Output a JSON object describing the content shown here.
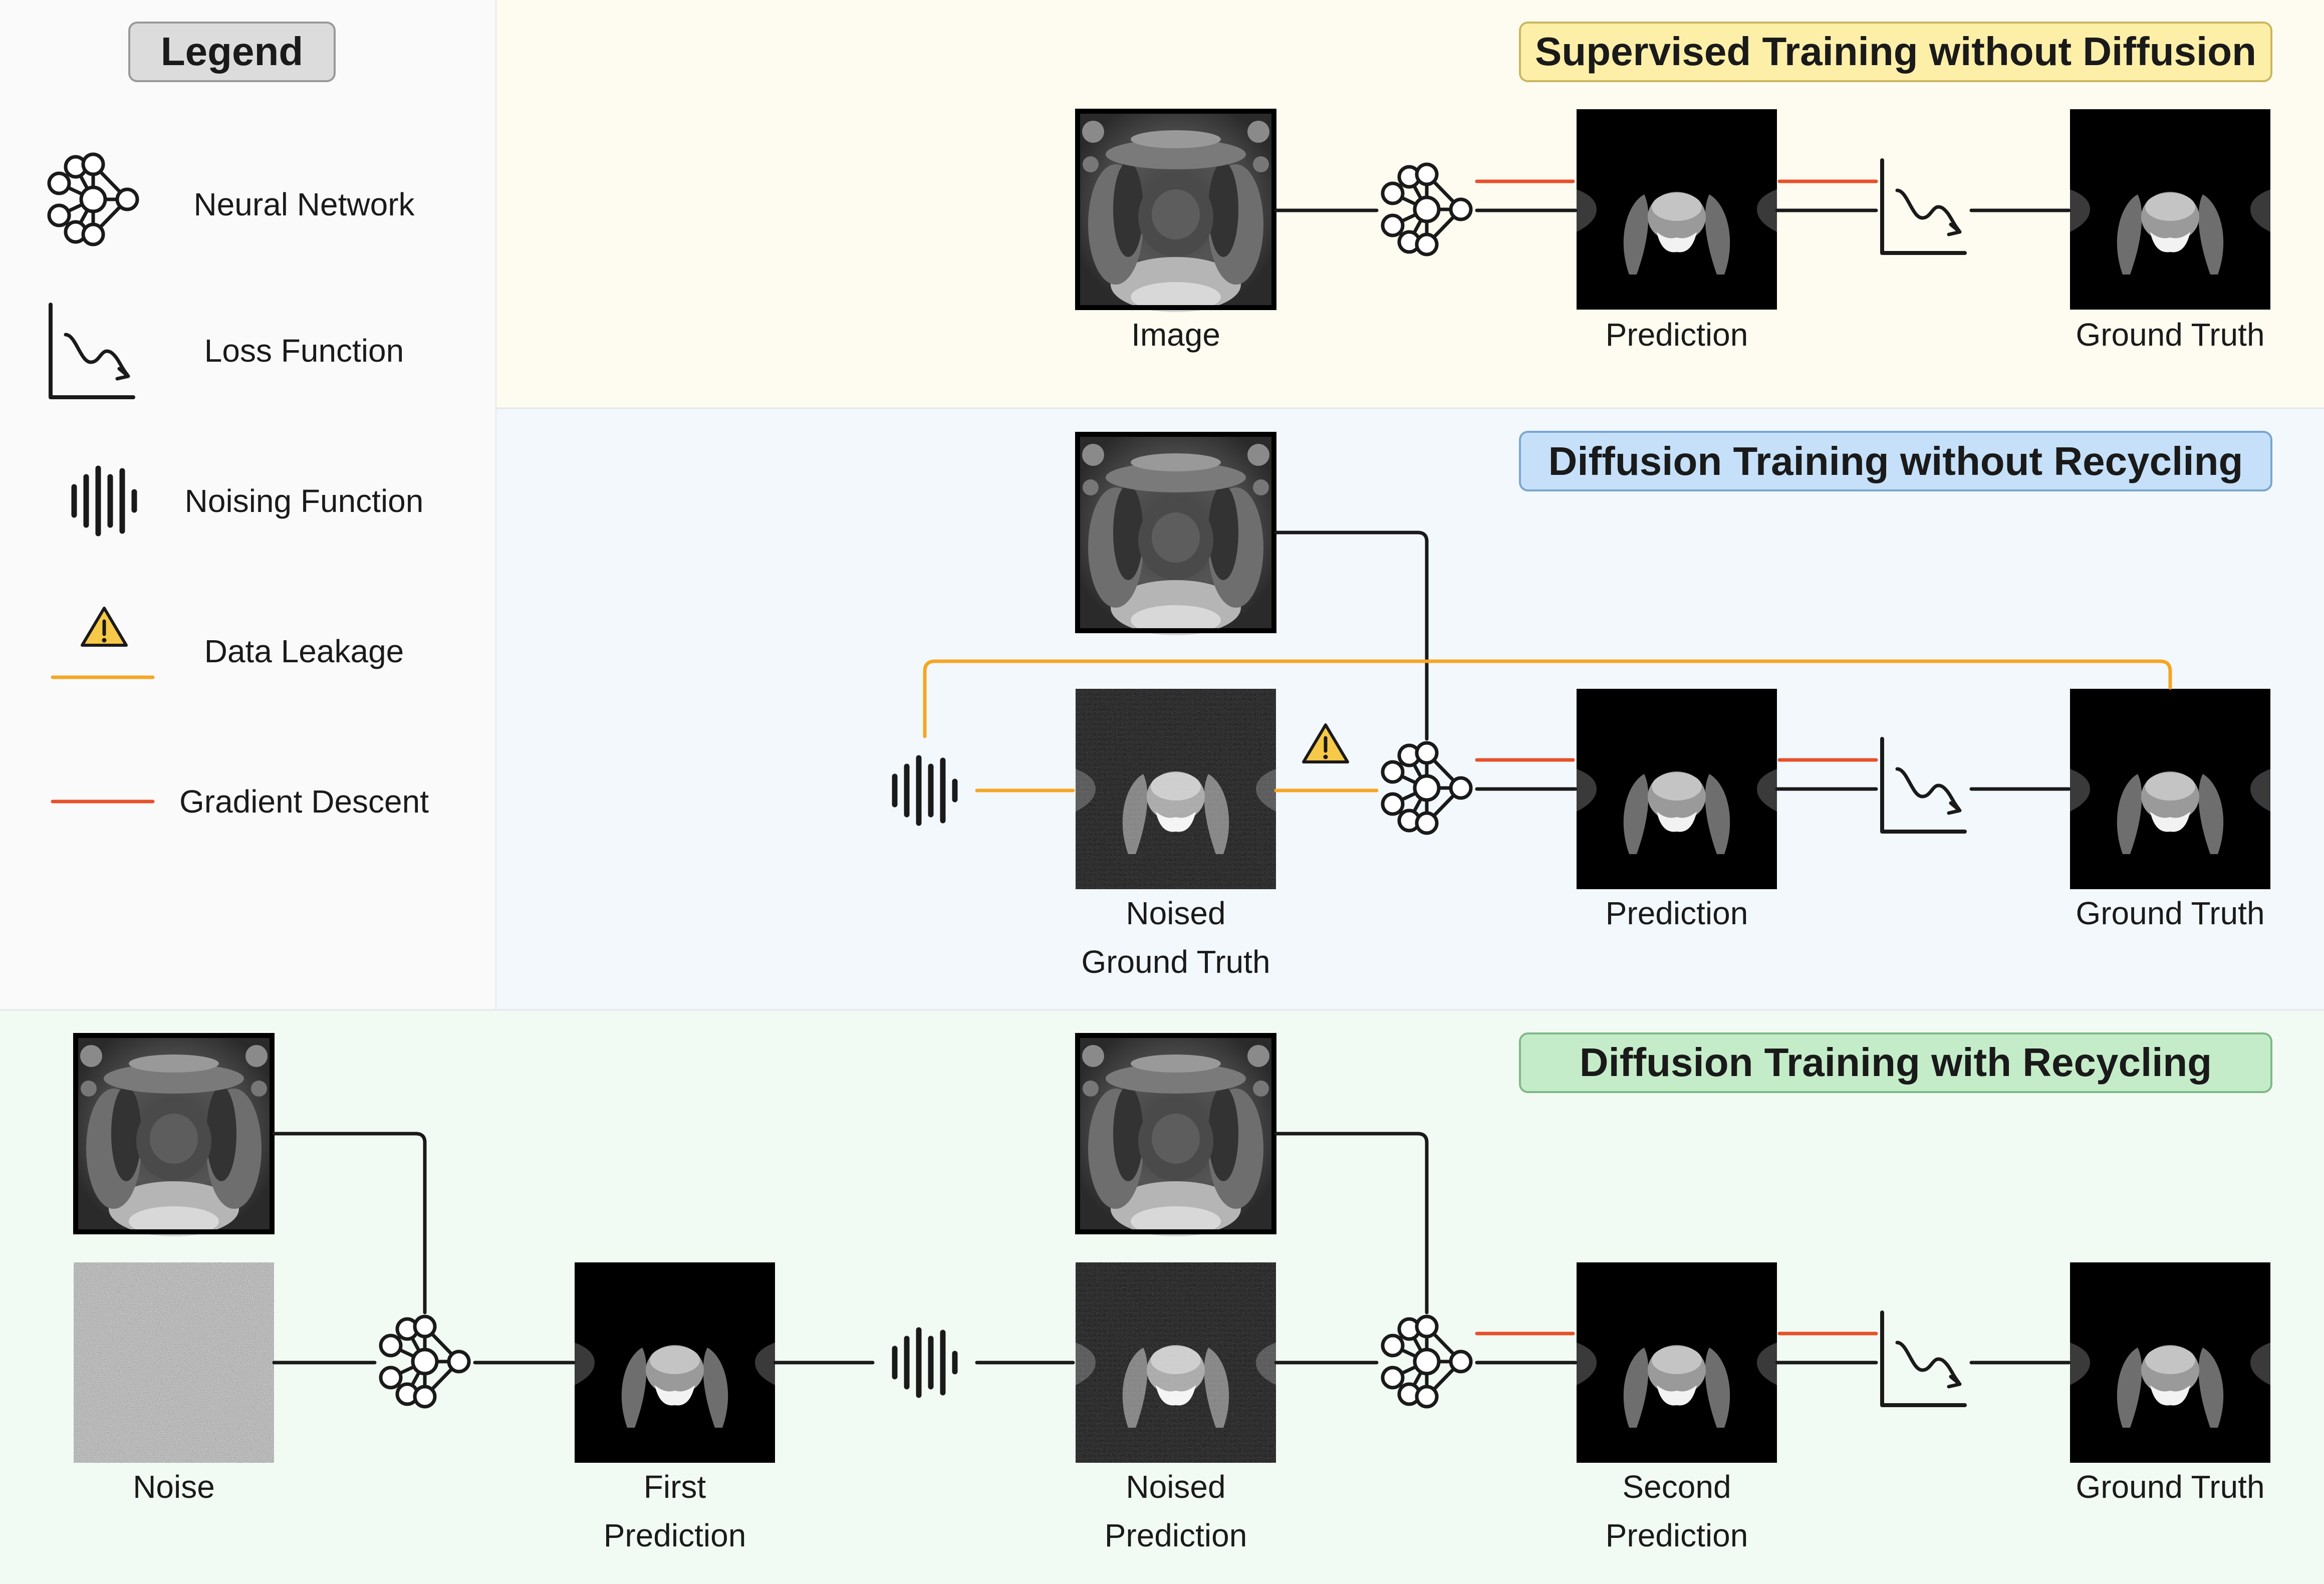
{
  "colors": {
    "panel_supervised": "#fefcf0",
    "panel_no_recycling": "#f3f8fd",
    "panel_recycling": "#f2fbf3",
    "legend_bg": "#fafafa",
    "badge_supervised": "#fdefa8",
    "badge_no_recycling": "#c5e0f8",
    "badge_recycling": "#c5ecc9",
    "badge_legend": "#dcdcdc",
    "data_leakage_arrow": "#f5a623",
    "gradient_descent_arrow": "#e8502a"
  },
  "legend": {
    "title": "Legend",
    "items": [
      {
        "icon": "neural-network-icon",
        "label": "Neural Network"
      },
      {
        "icon": "loss-function-icon",
        "label": "Loss Function"
      },
      {
        "icon": "noising-function-icon",
        "label": "Noising Function"
      },
      {
        "icon": "data-leakage-icon",
        "label": "Data Leakage"
      },
      {
        "icon": "gradient-descent-icon",
        "label": "Gradient Descent"
      }
    ]
  },
  "panels": {
    "supervised": {
      "title": "Supervised Training without Diffusion",
      "labels": {
        "image": "Image",
        "prediction": "Prediction",
        "ground_truth": "Ground Truth"
      }
    },
    "no_recycling": {
      "title": "Diffusion Training without Recycling",
      "labels": {
        "noised_gt_1": "Noised",
        "noised_gt_2": "Ground Truth",
        "prediction": "Prediction",
        "ground_truth": "Ground Truth"
      }
    },
    "recycling": {
      "title": "Diffusion Training with Recycling",
      "labels": {
        "noise": "Noise",
        "first_prediction_1": "First",
        "first_prediction_2": "Prediction",
        "noised_prediction_1": "Noised",
        "noised_prediction_2": "Prediction",
        "second_prediction_1": "Second",
        "second_prediction_2": "Prediction",
        "ground_truth": "Ground Truth"
      }
    }
  }
}
